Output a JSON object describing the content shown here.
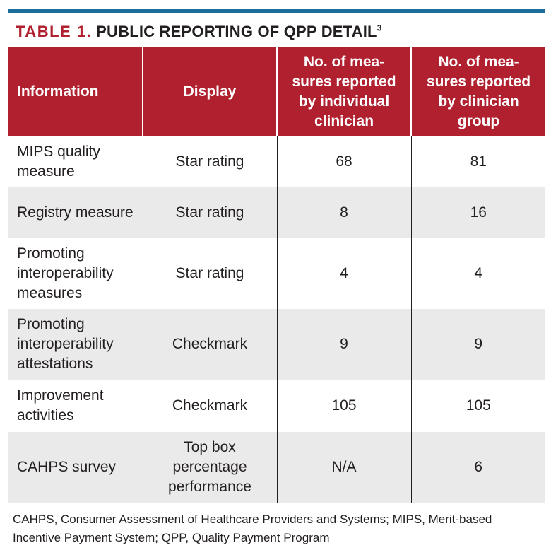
{
  "title": {
    "number": "TABLE 1.",
    "text": "PUBLIC REPORTING OF QPP DETAIL",
    "superscript": "3"
  },
  "table": {
    "headers": [
      "Information",
      "Display",
      "No. of mea-sures reported by individual clinician",
      "No. of mea-sures reported by clinician group"
    ],
    "rows": [
      {
        "information": "MIPS quality measure",
        "display": "Star rating",
        "individual": "68",
        "group": "81"
      },
      {
        "information": "Registry measure",
        "display": "Star rating",
        "individual": "8",
        "group": "16"
      },
      {
        "information": "Promoting interoperability measures",
        "display": "Star rating",
        "individual": "4",
        "group": "4"
      },
      {
        "information": "Promoting interoperability attestations",
        "display": "Checkmark",
        "individual": "9",
        "group": "9"
      },
      {
        "information": "Improvement activities",
        "display": "Checkmark",
        "individual": "105",
        "group": "105"
      },
      {
        "information": "CAHPS survey",
        "display": "Top box percentage performance",
        "individual": "N/A",
        "group": "6"
      }
    ]
  },
  "footnote": "CAHPS, Consumer Assessment of Healthcare Providers and Systems; MIPS, Merit-based Incentive Payment System; QPP, Quality Payment Program"
}
